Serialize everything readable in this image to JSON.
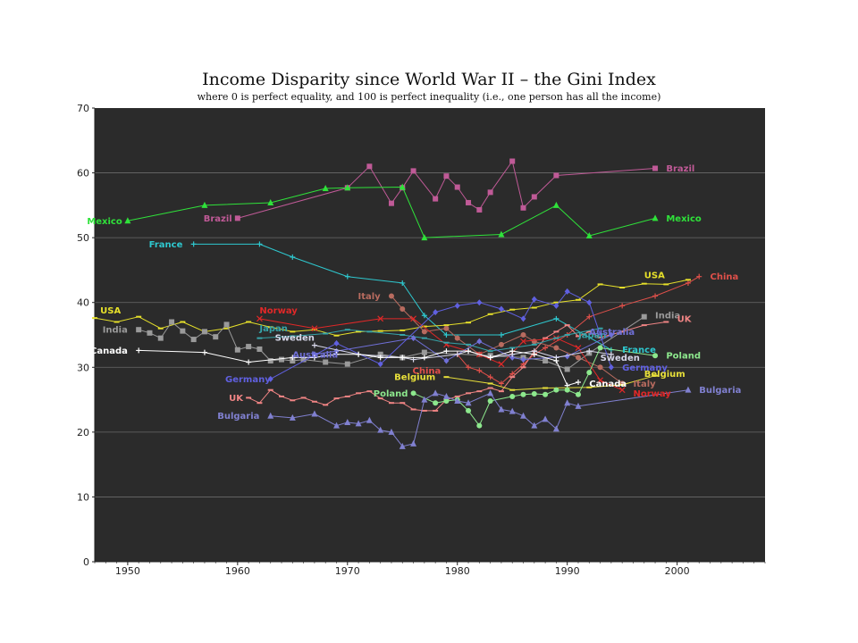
{
  "chart_data": {
    "type": "line",
    "title": "Income Disparity since World War II – the Gini Index",
    "subtitle": "where 0 is perfect equality, and 100 is perfect inequality (i.e., one person has all the income)",
    "xlim": [
      1947,
      2008
    ],
    "ylim": [
      0,
      70
    ],
    "x_ticks": [
      1950,
      1960,
      1970,
      1980,
      1990,
      2000
    ],
    "y_ticks": [
      0,
      10,
      20,
      30,
      40,
      50,
      60,
      70
    ],
    "grid": "horizontal",
    "background": "#2b2b2b",
    "series": [
      {
        "name": "Brazil",
        "color": "#c05a97",
        "marker": "square",
        "x": [
          1960,
          1970,
          1972,
          1974,
          1975,
          1976,
          1978,
          1979,
          1980,
          1981,
          1982,
          1983,
          1985,
          1986,
          1987,
          1989,
          1998
        ],
        "y": [
          53,
          57.7,
          61,
          55.3,
          57.7,
          60.3,
          56,
          59.5,
          57.8,
          55.4,
          54.3,
          57,
          61.8,
          54.6,
          56.3,
          59.6,
          60.7
        ],
        "labels": [
          {
            "text": "Brazil",
            "x": 1959.5,
            "y": 53,
            "anchor": "end"
          },
          {
            "text": "Brazil",
            "x": 1999,
            "y": 60.7,
            "anchor": "start"
          }
        ]
      },
      {
        "name": "Mexico",
        "color": "#2fe23a",
        "marker": "triangle",
        "x": [
          1950,
          1957,
          1963,
          1968,
          1970,
          1975,
          1977,
          1984,
          1989,
          1992,
          1998
        ],
        "y": [
          52.6,
          55,
          55.4,
          57.6,
          57.7,
          57.8,
          50,
          50.5,
          55,
          50.3,
          53
        ],
        "labels": [
          {
            "text": "Mexico",
            "x": 1949.5,
            "y": 52.6,
            "anchor": "end"
          },
          {
            "text": "Mexico",
            "x": 1999,
            "y": 53,
            "anchor": "start"
          }
        ]
      },
      {
        "name": "France",
        "color": "#2ec8cf",
        "marker": "plus",
        "x": [
          1956,
          1962,
          1965,
          1970,
          1975,
          1977,
          1979,
          1984,
          1989,
          1994
        ],
        "y": [
          49,
          49,
          47,
          44,
          43,
          38,
          35,
          35,
          37.5,
          32.7
        ],
        "labels": [
          {
            "text": "France",
            "x": 1955,
            "y": 49,
            "anchor": "end"
          },
          {
            "text": "France",
            "x": 1995,
            "y": 32.7,
            "anchor": "start"
          }
        ]
      },
      {
        "name": "China",
        "color": "#e0504a",
        "marker": "plus",
        "x": [
          1980,
          1981,
          1982,
          1983,
          1984,
          1985,
          1986,
          1987,
          1988,
          1990,
          1992,
          1995,
          1998,
          2001,
          2002
        ],
        "y": [
          32,
          30,
          29.5,
          28.5,
          27.5,
          29,
          30.5,
          32,
          33,
          35,
          37.8,
          39.5,
          41,
          43,
          44
        ],
        "labels": [
          {
            "text": "China",
            "x": 1978.5,
            "y": 29.5,
            "anchor": "end"
          },
          {
            "text": "China",
            "x": 2003,
            "y": 44,
            "anchor": "start"
          }
        ]
      },
      {
        "name": "USA",
        "color": "#e6e02a",
        "marker": "dash",
        "x": [
          1947,
          1949,
          1951,
          1953,
          1955,
          1957,
          1959,
          1961,
          1963,
          1965,
          1967,
          1969,
          1971,
          1973,
          1975,
          1977,
          1979,
          1981,
          1983,
          1985,
          1987,
          1989,
          1991,
          1993,
          1995,
          1997,
          1999,
          2001
        ],
        "y": [
          37.6,
          37,
          37.8,
          36,
          37,
          35.5,
          36,
          37,
          36.2,
          35.5,
          35.8,
          34.9,
          35.5,
          35.6,
          35.7,
          36.3,
          36.5,
          36.9,
          38.2,
          38.9,
          39.2,
          40,
          40.4,
          42.8,
          42.3,
          42.9,
          42.8,
          43.5
        ],
        "labels": [
          {
            "text": "USA",
            "x": 1947.5,
            "y": 38.8,
            "anchor": "start"
          },
          {
            "text": "USA",
            "x": 1997,
            "y": 44.2,
            "anchor": "start"
          }
        ]
      },
      {
        "name": "Italy",
        "color": "#b86b5f",
        "marker": "circle",
        "x": [
          1974,
          1975,
          1977,
          1979,
          1980,
          1982,
          1984,
          1986,
          1987,
          1989,
          1991,
          1993,
          1995
        ],
        "y": [
          41,
          39,
          35.5,
          36,
          34.5,
          32,
          33.5,
          35,
          34,
          33,
          31.5,
          30,
          27.5
        ],
        "labels": [
          {
            "text": "Italy",
            "x": 1973,
            "y": 41,
            "anchor": "end"
          },
          {
            "text": "Italy",
            "x": 1996,
            "y": 27.5,
            "anchor": "start"
          }
        ]
      },
      {
        "name": "India",
        "color": "#9a9a9a",
        "marker": "square",
        "x": [
          1951,
          1952,
          1953,
          1954,
          1955,
          1956,
          1957,
          1958,
          1959,
          1960,
          1961,
          1962,
          1963,
          1964,
          1965,
          1966,
          1968,
          1970,
          1973,
          1975,
          1977,
          1983,
          1986,
          1988,
          1990,
          1992,
          1997
        ],
        "y": [
          35.8,
          35.3,
          34.5,
          37,
          35.6,
          34.3,
          35.5,
          34.7,
          36.6,
          32.7,
          33.2,
          32.8,
          31,
          31.2,
          31,
          31.2,
          30.8,
          30.5,
          32,
          31.5,
          32.3,
          31.8,
          31.5,
          31,
          29.7,
          32.2,
          37.8
        ],
        "labels": [
          {
            "text": "India",
            "x": 1950,
            "y": 35.8,
            "anchor": "end"
          },
          {
            "text": "India",
            "x": 1998,
            "y": 38,
            "anchor": "start"
          }
        ]
      },
      {
        "name": "UK",
        "color": "#f08484",
        "marker": "dash",
        "x": [
          1961,
          1962,
          1963,
          1964,
          1965,
          1966,
          1967,
          1968,
          1969,
          1970,
          1971,
          1972,
          1973,
          1974,
          1975,
          1976,
          1977,
          1978,
          1979,
          1980,
          1981,
          1982,
          1983,
          1984,
          1985,
          1986,
          1987,
          1988,
          1989,
          1990,
          1991,
          1992,
          1993,
          1995,
          1997,
          1999
        ],
        "y": [
          25.3,
          24.5,
          26.5,
          25.5,
          24.9,
          25.3,
          24.7,
          24.2,
          25.2,
          25.5,
          26,
          26.3,
          25.2,
          24.5,
          24.5,
          23.5,
          23.3,
          23.3,
          25,
          25.5,
          26,
          26.3,
          26.8,
          26.3,
          28.5,
          30,
          32.5,
          34.5,
          35.5,
          36.5,
          34.8,
          35.5,
          34.6,
          35.5,
          36.5,
          37
        ],
        "labels": [
          {
            "text": "UK",
            "x": 1960.5,
            "y": 25.3,
            "anchor": "end"
          },
          {
            "text": "UK",
            "x": 2000,
            "y": 37.5,
            "anchor": "start"
          }
        ]
      },
      {
        "name": "Norway",
        "color": "#e02828",
        "marker": "x",
        "x": [
          1962,
          1967,
          1973,
          1976,
          1979,
          1982,
          1984,
          1986,
          1989,
          1991,
          1993,
          1995
        ],
        "y": [
          37.5,
          36,
          37.5,
          37.5,
          33.5,
          32,
          30.5,
          34,
          34.5,
          33,
          28,
          26.5
        ],
        "labels": [
          {
            "text": "Norway",
            "x": 1962,
            "y": 38.8,
            "anchor": "start"
          },
          {
            "text": "Norway",
            "x": 1996,
            "y": 26,
            "anchor": "start"
          }
        ]
      },
      {
        "name": "Japan",
        "color": "#36a3a8",
        "marker": "dash",
        "x": [
          1962,
          1965,
          1968,
          1970,
          1972,
          1975,
          1977,
          1979,
          1981,
          1983,
          1985,
          1987,
          1989,
          1990,
          1993
        ],
        "y": [
          34.5,
          34.8,
          35.2,
          35.8,
          35.5,
          35,
          34.5,
          33.8,
          33.5,
          32.5,
          33,
          33.5,
          34.5,
          35,
          36
        ],
        "labels": [
          {
            "text": "Japan",
            "x": 1962,
            "y": 36,
            "anchor": "start"
          },
          {
            "text": "Japan",
            "x": 1991,
            "y": 35,
            "anchor": "start"
          }
        ]
      },
      {
        "name": "Australia",
        "color": "#7070d8",
        "marker": "diamond",
        "x": [
          1967,
          1969,
          1976,
          1979,
          1982,
          1985,
          1986,
          1990,
          1994
        ],
        "y": [
          32,
          32.5,
          34.5,
          31,
          34,
          31.5,
          31.2,
          31.7,
          35
        ],
        "labels": [
          {
            "text": "Australia",
            "x": 1965,
            "y": 32,
            "anchor": "start"
          },
          {
            "text": "Australia",
            "x": 1992,
            "y": 35.5,
            "anchor": "start"
          }
        ]
      },
      {
        "name": "Sweden",
        "color": "#d8d8ea",
        "marker": "plus",
        "x": [
          1967,
          1971,
          1975,
          1976,
          1980,
          1981,
          1983,
          1985,
          1987,
          1989,
          1992,
          1994
        ],
        "y": [
          33.4,
          32,
          31.5,
          31.2,
          32,
          32.5,
          31.5,
          32,
          32.5,
          31.5,
          32.5,
          32
        ],
        "labels": [
          {
            "text": "Sweden",
            "x": 1967,
            "y": 34.6,
            "anchor": "end"
          },
          {
            "text": "Sweden",
            "x": 1993,
            "y": 31.5,
            "anchor": "start"
          }
        ]
      },
      {
        "name": "Germany",
        "color": "#6060e0",
        "marker": "diamond",
        "x": [
          1963,
          1969,
          1973,
          1978,
          1980,
          1982,
          1984,
          1986,
          1987,
          1989,
          1990,
          1992,
          1994
        ],
        "y": [
          28.2,
          33.7,
          30.5,
          38.5,
          39.5,
          40,
          39,
          37.5,
          40.5,
          39.5,
          41.7,
          40,
          30
        ],
        "labels": [
          {
            "text": "Germany",
            "x": 1963,
            "y": 28.2,
            "anchor": "end"
          },
          {
            "text": "Germany",
            "x": 1995,
            "y": 30,
            "anchor": "start"
          }
        ]
      },
      {
        "name": "Canada",
        "color": "#ffffff",
        "marker": "plus",
        "x": [
          1951,
          1957,
          1961,
          1965,
          1967,
          1969,
          1971,
          1973,
          1975,
          1977,
          1979,
          1981,
          1983,
          1985,
          1987,
          1989,
          1990,
          1991
        ],
        "y": [
          32.6,
          32.3,
          30.8,
          31.5,
          31.5,
          32,
          32,
          31.5,
          31.5,
          31.5,
          32.5,
          32.5,
          31.5,
          32.5,
          32,
          31,
          27.2,
          27.7
        ],
        "labels": [
          {
            "text": "Canada",
            "x": 1950,
            "y": 32.6,
            "anchor": "end"
          },
          {
            "text": "Canada",
            "x": 1992,
            "y": 27.5,
            "anchor": "start"
          }
        ]
      },
      {
        "name": "Belgium",
        "color": "#e8e03a",
        "marker": "dash",
        "x": [
          1979,
          1983,
          1985,
          1988,
          1992,
          1995,
          1998
        ],
        "y": [
          28.5,
          27.5,
          26.5,
          26.8,
          26.9,
          27.3,
          28.7
        ],
        "labels": [
          {
            "text": "Belgium",
            "x": 1978,
            "y": 28.5,
            "anchor": "end"
          },
          {
            "text": "Belgium",
            "x": 1997,
            "y": 29,
            "anchor": "start"
          }
        ]
      },
      {
        "name": "Poland",
        "color": "#8de88d",
        "marker": "circle",
        "x": [
          1976,
          1978,
          1979,
          1980,
          1981,
          1982,
          1983,
          1985,
          1986,
          1987,
          1988,
          1989,
          1990,
          1991,
          1992,
          1993,
          1998
        ],
        "y": [
          26,
          24.5,
          24.8,
          25,
          23.3,
          21,
          24.8,
          25.5,
          25.8,
          25.9,
          25.8,
          26.5,
          26.5,
          25.8,
          29.2,
          33,
          31.8
        ],
        "labels": [
          {
            "text": "Poland",
            "x": 1975.5,
            "y": 26,
            "anchor": "end"
          },
          {
            "text": "Poland",
            "x": 1999,
            "y": 31.8,
            "anchor": "start"
          }
        ]
      },
      {
        "name": "Bulgaria",
        "color": "#8080d0",
        "marker": "triangle",
        "x": [
          1963,
          1965,
          1967,
          1969,
          1970,
          1971,
          1972,
          1973,
          1974,
          1975,
          1976,
          1977,
          1978,
          1979,
          1980,
          1981,
          1983,
          1984,
          1985,
          1986,
          1987,
          1988,
          1989,
          1990,
          1991,
          2001
        ],
        "y": [
          22.5,
          22.2,
          22.8,
          21,
          21.5,
          21.3,
          21.8,
          20.3,
          20,
          17.8,
          18.2,
          25,
          26,
          25.5,
          24.8,
          24.5,
          26,
          23.5,
          23.2,
          22.5,
          21,
          22,
          20.5,
          24.5,
          24,
          26.5
        ],
        "labels": [
          {
            "text": "Bulgaria",
            "x": 1962,
            "y": 22.5,
            "anchor": "end"
          },
          {
            "text": "Bulgaria",
            "x": 2002,
            "y": 26.5,
            "anchor": "start"
          }
        ]
      }
    ]
  }
}
